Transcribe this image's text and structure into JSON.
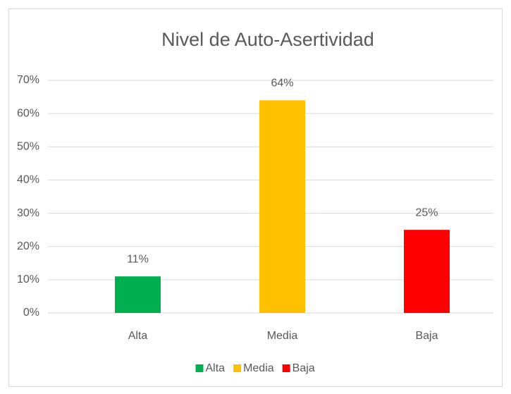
{
  "chart_data": {
    "type": "bar",
    "title": "Nivel de Auto-Asertividad",
    "categories": [
      "Alta",
      "Media",
      "Baja"
    ],
    "values": [
      11,
      64,
      25
    ],
    "value_labels": [
      "11%",
      "64%",
      "25%"
    ],
    "colors": [
      "#00b050",
      "#ffc000",
      "#ff0000"
    ],
    "ylim": [
      0,
      70
    ],
    "yticks": [
      {
        "value": 0,
        "label": "0%"
      },
      {
        "value": 10,
        "label": "10%"
      },
      {
        "value": 20,
        "label": "20%"
      },
      {
        "value": 30,
        "label": "30%"
      },
      {
        "value": 40,
        "label": "40%"
      },
      {
        "value": 50,
        "label": "50%"
      },
      {
        "value": 60,
        "label": "60%"
      },
      {
        "value": 70,
        "label": "70%"
      }
    ],
    "grid": true,
    "legend": "bottom"
  }
}
